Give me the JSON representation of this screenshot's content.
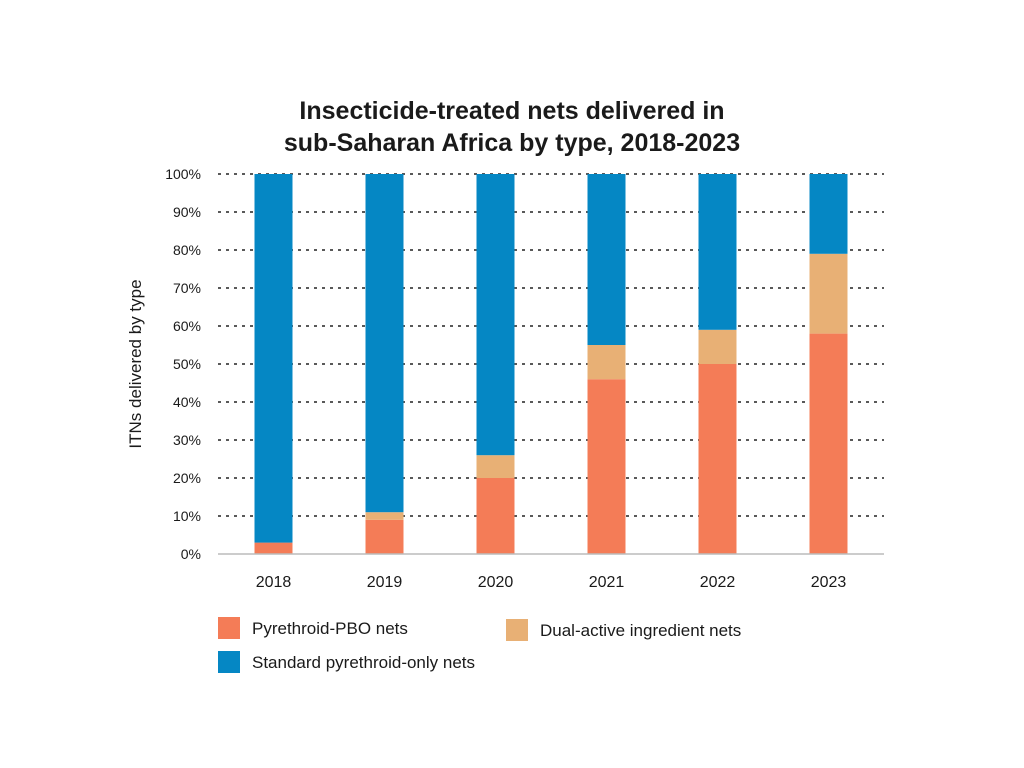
{
  "chart_data": {
    "type": "bar",
    "stacked": true,
    "title": "Insecticide-treated nets delivered in sub-Saharan Africa by type, 2018-2023",
    "title_lines": [
      "Insecticide-treated nets delivered in",
      "sub-Saharan Africa by type, 2018-2023"
    ],
    "xlabel": "",
    "ylabel": "ITNs delivered by type",
    "ylim": [
      0,
      100
    ],
    "yticks": [
      0,
      10,
      20,
      30,
      40,
      50,
      60,
      70,
      80,
      90,
      100
    ],
    "ytick_labels": [
      "0%",
      "10%",
      "20%",
      "30%",
      "40%",
      "50%",
      "60%",
      "70%",
      "80%",
      "90%",
      "100%"
    ],
    "grid": "horizontal dotted",
    "categories": [
      "2018",
      "2019",
      "2020",
      "2021",
      "2022",
      "2023"
    ],
    "series": [
      {
        "name": "Pyrethroid-PBO nets",
        "color": "#f47c57",
        "values": [
          3,
          9,
          20,
          46,
          50,
          58
        ]
      },
      {
        "name": "Dual-active ingredient nets",
        "color": "#e8b075",
        "values": [
          0,
          2,
          6,
          9,
          9,
          21
        ]
      },
      {
        "name": "Standard pyrethroid-only nets",
        "color": "#0587c4",
        "values": [
          97,
          89,
          74,
          45,
          41,
          21
        ]
      }
    ],
    "legend_position": "bottom"
  }
}
